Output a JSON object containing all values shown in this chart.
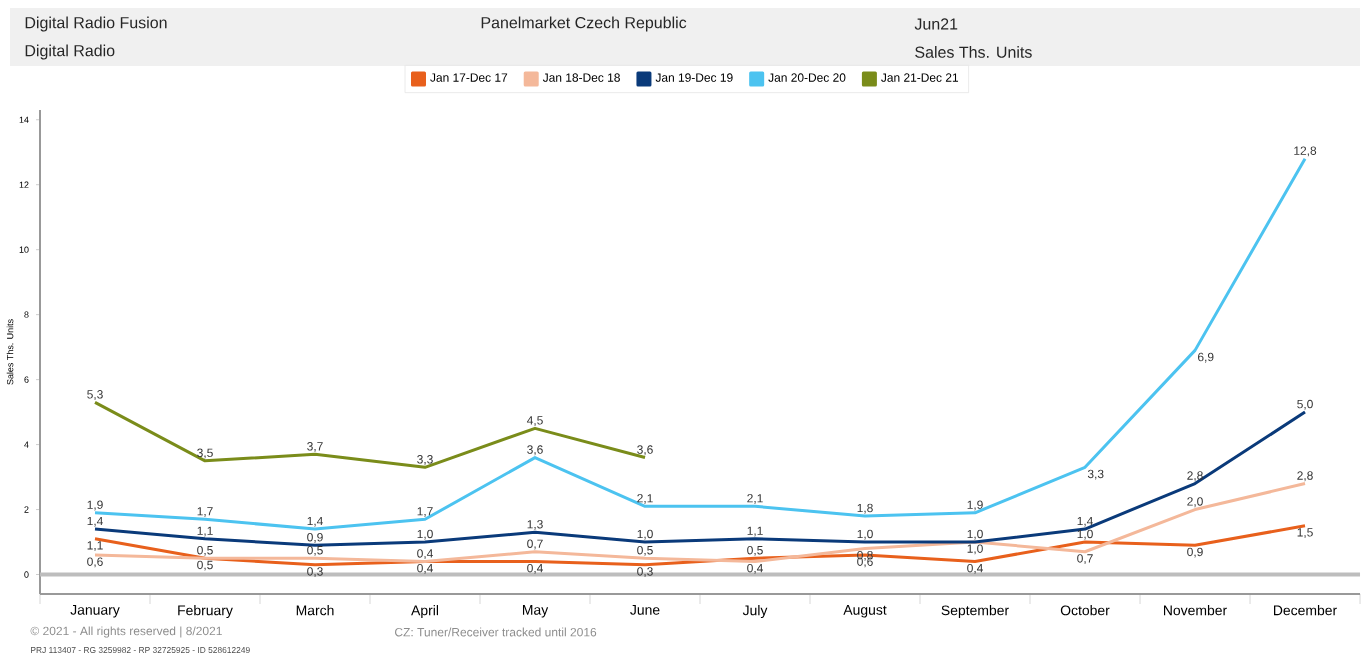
{
  "chart_data": {
    "type": "line",
    "title": "Digital Radio Fusion",
    "subtitle": "Digital Radio",
    "ylabel": "Sales Ths. Units",
    "annotations": [
      "Panelmarket Czech Republic",
      "Jun21",
      "Sales Ths. Units",
      "© 2021 - All rights reserved | 8/2021",
      "CZ: Tuner/Receiver tracked until 2016",
      "PRJ 113407 - RG 3259982 - RP 32725925 - ID 528612249"
    ],
    "categories": [
      "January",
      "February",
      "March",
      "April",
      "May",
      "June",
      "July",
      "August",
      "September",
      "October",
      "November",
      "December"
    ],
    "series": [
      {
        "name": "Jan 17-Dec 17",
        "color": "#e8601c",
        "values": [
          1.1,
          0.5,
          0.3,
          0.4,
          0.4,
          0.3,
          0.5,
          0.6,
          0.4,
          1.0,
          0.9,
          1.5
        ],
        "value_labels": [
          "1,1",
          "0,5",
          "0,3",
          "0,4",
          "0,4",
          "0,3",
          "0,5",
          "0,6",
          "0,4",
          "1,0",
          "0,9",
          "1,5"
        ]
      },
      {
        "name": "Jan 18-Dec 18",
        "color": "#f4b89a",
        "values": [
          0.6,
          0.5,
          0.5,
          0.4,
          0.7,
          0.5,
          0.4,
          0.8,
          1.0,
          0.7,
          2.0,
          2.8
        ],
        "value_labels": [
          "0,6",
          "0,5",
          "0,5",
          "0,4",
          "0,7",
          "0,5",
          "0,4",
          "0,8",
          "1,0",
          "0,7",
          "2,0",
          "2,8"
        ]
      },
      {
        "name": "Jan 19-Dec 19",
        "color": "#0a3a7a",
        "values": [
          1.4,
          1.1,
          0.9,
          1.0,
          1.3,
          1.0,
          1.1,
          1.0,
          1.0,
          1.4,
          2.8,
          5.0
        ],
        "value_labels": [
          "1,4",
          "1,1",
          "0,9",
          "1,0",
          "1,3",
          "1,0",
          "1,1",
          "1,0",
          "1,0",
          "1,4",
          "2,8",
          "5,0"
        ]
      },
      {
        "name": "Jan 20-Dec 20",
        "color": "#4cc3f0",
        "values": [
          1.9,
          1.7,
          1.4,
          1.7,
          3.6,
          2.1,
          2.1,
          1.8,
          1.9,
          3.3,
          6.9,
          12.8
        ],
        "value_labels": [
          "1,9",
          "1,7",
          "1,4",
          "1,7",
          "3,6",
          "2,1",
          "2,1",
          "1,8",
          "1,9",
          "3,3",
          "6,9",
          "12,8"
        ]
      },
      {
        "name": "Jan 21-Dec 21",
        "color": "#7a8c1a",
        "values": [
          5.3,
          3.5,
          3.7,
          3.3,
          4.5,
          3.6,
          null,
          null,
          null,
          null,
          null,
          null
        ],
        "value_labels": [
          "5,3",
          "3,5",
          "3,7",
          "3,3",
          "4,5",
          "3,6",
          null,
          null,
          null,
          null,
          null,
          null
        ]
      }
    ],
    "ylim": [
      -0.6,
      14.3
    ],
    "yticks": [
      0,
      2,
      4,
      6,
      8,
      10,
      12,
      14
    ],
    "ref_lines": [
      {
        "axis": "y",
        "value": 0,
        "color": "#bdbdbd"
      }
    ],
    "grid": false,
    "legend": "top",
    "marker": "none",
    "line_style": "solid"
  }
}
